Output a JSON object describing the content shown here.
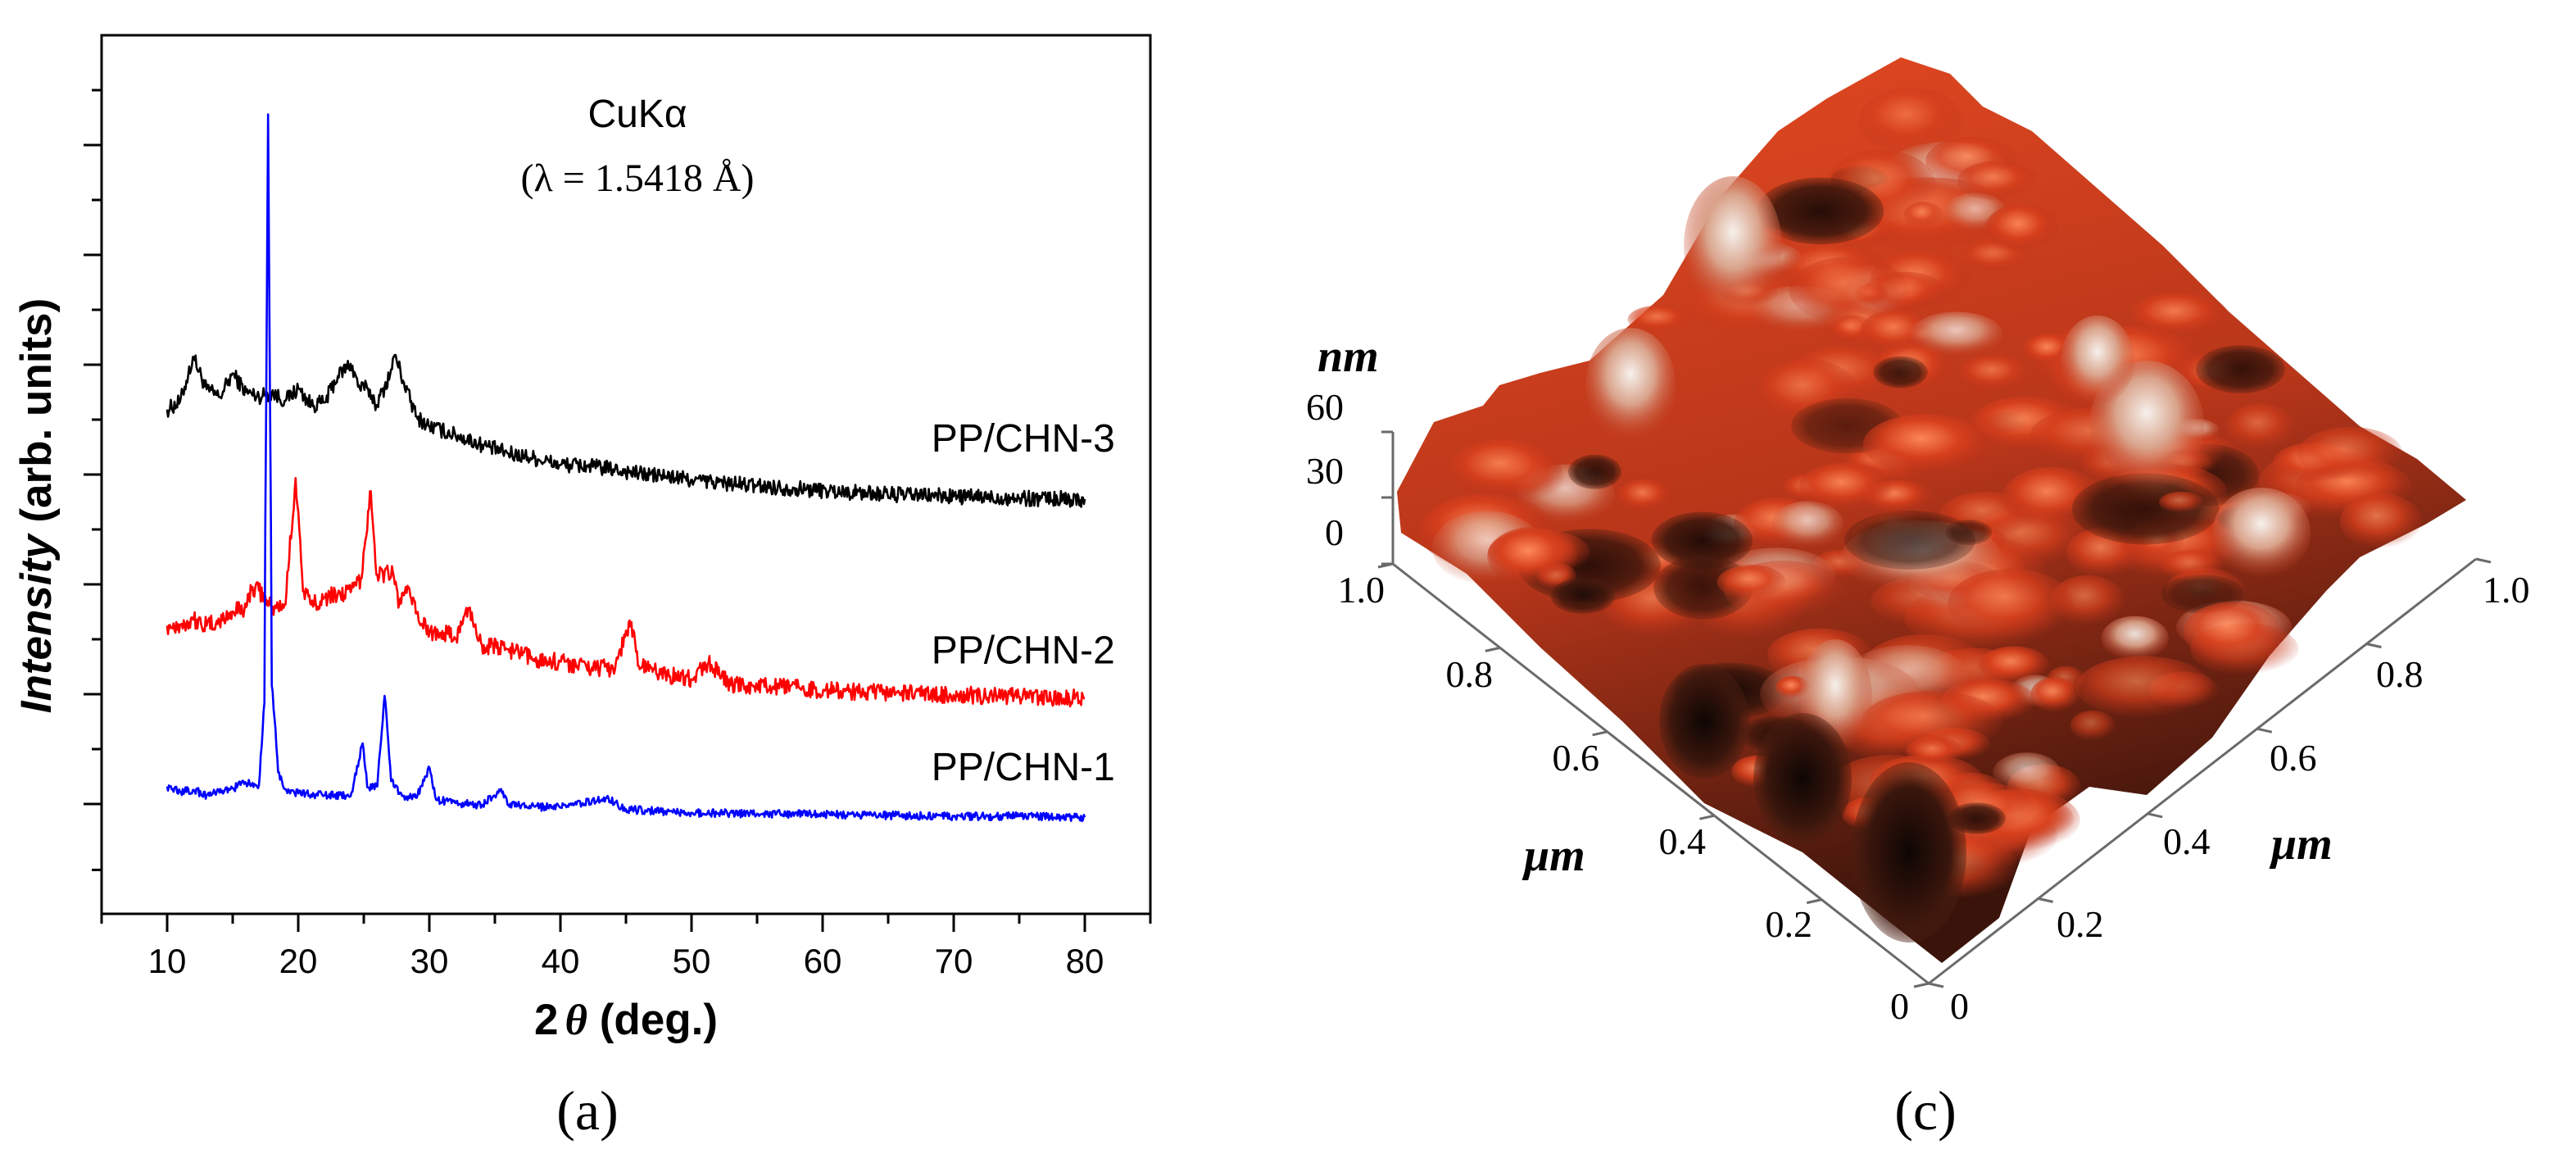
{
  "panels": {
    "a": {
      "label": "(a)"
    },
    "c": {
      "label": "(c)"
    }
  },
  "chart_data": [
    {
      "type": "line",
      "panel": "a",
      "title": "",
      "annotation": {
        "line1": "CuKα",
        "line2": "(λ = 1.5418 Å)"
      },
      "xlabel_prefix": "2",
      "xlabel_symbol": "θ",
      "xlabel_suffix": " (deg.)",
      "ylabel_italic": "Intensity",
      "ylabel_rest": " (arb. units)",
      "xlim": [
        5,
        85
      ],
      "ylim": [
        0,
        100
      ],
      "xticks": [
        10,
        20,
        30,
        40,
        50,
        60,
        70,
        80
      ],
      "yticks_unlabeled": [
        5,
        12.5,
        18.75,
        25,
        31.25,
        37.5,
        43.75,
        50,
        56.25,
        62.5,
        68.75,
        75,
        81.25,
        87.5,
        93.75
      ],
      "series": [
        {
          "name": "PP/CHN-3",
          "color": "#000000",
          "baseline": 47.2,
          "label_x": 75.3,
          "label_y": 52.6,
          "points": [
            [
              10,
              57.4
            ],
            [
              11,
              58.3
            ],
            [
              12,
              63.4
            ],
            [
              13,
              59.7
            ],
            [
              14,
              58.8
            ],
            [
              15,
              61.5
            ],
            [
              16,
              59.4
            ],
            [
              17,
              58.9
            ],
            [
              18,
              59.3
            ],
            [
              19,
              58.4
            ],
            [
              20,
              59.8
            ],
            [
              21,
              57.9
            ],
            [
              22,
              58.2
            ],
            [
              23,
              61.2
            ],
            [
              24,
              62.6
            ],
            [
              24.7,
              59.8
            ],
            [
              25.3,
              59.8
            ],
            [
              26,
              57.9
            ],
            [
              27,
              61.4
            ],
            [
              27.4,
              63.6
            ],
            [
              28,
              60.7
            ],
            [
              29,
              56.6
            ],
            [
              30,
              55.5
            ],
            [
              32,
              54.5
            ],
            [
              34,
              53.4
            ],
            [
              36,
              52.4
            ],
            [
              38,
              51.9
            ],
            [
              40,
              51.1
            ],
            [
              42,
              51.0
            ],
            [
              44,
              50.6
            ],
            [
              46,
              50.1
            ],
            [
              48,
              49.8
            ],
            [
              50,
              49.4
            ],
            [
              52,
              49.1
            ],
            [
              55,
              48.7
            ],
            [
              58,
              48.4
            ],
            [
              62,
              48.0
            ],
            [
              66,
              47.7
            ],
            [
              70,
              47.5
            ],
            [
              75,
              47.3
            ],
            [
              80,
              47.2
            ]
          ],
          "noise": 0.9
        },
        {
          "name": "PP/CHN-2",
          "color": "#ff0000",
          "baseline": 24.5,
          "label_x": 75.3,
          "label_y": 28.5,
          "points": [
            [
              10,
              32.8
            ],
            [
              11,
              32.9
            ],
            [
              12,
              33.5
            ],
            [
              13,
              32.8
            ],
            [
              14,
              33.2
            ],
            [
              15,
              34.4
            ],
            [
              16,
              34.9
            ],
            [
              16.5,
              37.2
            ],
            [
              17,
              36.8
            ],
            [
              18,
              34.7
            ],
            [
              19,
              35.2
            ],
            [
              19.8,
              49.6
            ],
            [
              20.4,
              36.7
            ],
            [
              21,
              35.2
            ],
            [
              22,
              36.0
            ],
            [
              23,
              36.4
            ],
            [
              24,
              36.6
            ],
            [
              24.8,
              38.2
            ],
            [
              25.5,
              48.1
            ],
            [
              26,
              38.6
            ],
            [
              27.2,
              38.9
            ],
            [
              27.7,
              35.2
            ],
            [
              28.2,
              37.2
            ],
            [
              29,
              34.2
            ],
            [
              30,
              32.0
            ],
            [
              31,
              32.2
            ],
            [
              32,
              31.3
            ],
            [
              33,
              34.8
            ],
            [
              34,
              30.6
            ],
            [
              36,
              30.1
            ],
            [
              38,
              29.0
            ],
            [
              40,
              28.7
            ],
            [
              42,
              28.1
            ],
            [
              44,
              27.9
            ],
            [
              45.4,
              33.2
            ],
            [
              46,
              28.2
            ],
            [
              48,
              27.3
            ],
            [
              50,
              26.7
            ],
            [
              51.3,
              28.6
            ],
            [
              53,
              26.0
            ],
            [
              55,
              25.9
            ],
            [
              58,
              25.7
            ],
            [
              62,
              25.3
            ],
            [
              66,
              25.1
            ],
            [
              70,
              24.9
            ],
            [
              75,
              24.7
            ],
            [
              80,
              24.5
            ]
          ],
          "noise": 1.0
        },
        {
          "name": "PP/CHN-1",
          "color": "#0000ff",
          "baseline": 11.0,
          "label_x": 75.3,
          "label_y": 15.2,
          "points": [
            [
              10,
              14.5
            ],
            [
              11,
              13.9
            ],
            [
              12,
              14.1
            ],
            [
              13,
              13.5
            ],
            [
              14,
              13.8
            ],
            [
              15,
              14.3
            ],
            [
              16,
              14.9
            ],
            [
              17,
              14.6
            ],
            [
              17.4,
              24.0
            ],
            [
              17.7,
              91.0
            ],
            [
              18.0,
              26.0
            ],
            [
              18.5,
              16.1
            ],
            [
              19,
              14.2
            ],
            [
              20,
              13.7
            ],
            [
              22,
              13.5
            ],
            [
              24,
              13.4
            ],
            [
              24.9,
              19.4
            ],
            [
              25.3,
              14.4
            ],
            [
              26,
              14.5
            ],
            [
              26.6,
              24.8
            ],
            [
              27.1,
              15.1
            ],
            [
              28,
              13.4
            ],
            [
              29,
              13.2
            ],
            [
              30,
              16.6
            ],
            [
              30.5,
              13.0
            ],
            [
              32,
              12.6
            ],
            [
              34,
              12.4
            ],
            [
              35.5,
              14.2
            ],
            [
              36,
              12.4
            ],
            [
              38,
              12.2
            ],
            [
              40,
              12.1
            ],
            [
              43.5,
              13.2
            ],
            [
              45,
              11.9
            ],
            [
              50,
              11.5
            ],
            [
              55,
              11.4
            ],
            [
              60,
              11.3
            ],
            [
              65,
              11.2
            ],
            [
              70,
              11.1
            ],
            [
              75,
              11.1
            ],
            [
              80,
              11.0
            ]
          ],
          "noise": 0.45
        }
      ]
    },
    {
      "type": "surface-3d",
      "panel": "c",
      "z_unit": "nm",
      "z_ticks": [
        "60",
        "30",
        "0"
      ],
      "x_unit": "μm",
      "y_unit": "μm",
      "x_ticks": [
        "1.0",
        "0.8",
        "0.6",
        "0.4",
        "0.2",
        "0"
      ],
      "y_ticks": [
        "0",
        "0.2",
        "0.4",
        "0.6",
        "0.8",
        "1.0"
      ],
      "colors": {
        "low": "#120805",
        "mid_dark": "#5a2414",
        "mid": "#c43618",
        "high": "#f06a3c",
        "peak": "#f4eee8"
      }
    }
  ]
}
